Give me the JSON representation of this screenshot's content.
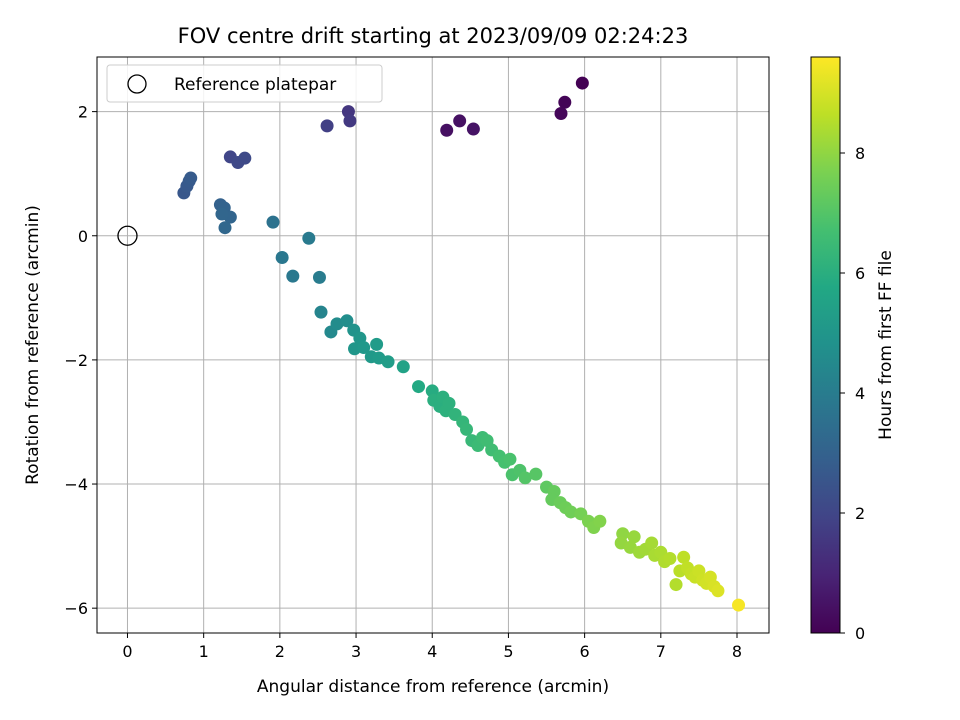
{
  "chart_data": {
    "type": "scatter",
    "title": "FOV centre drift starting at 2023/09/09 02:24:23",
    "xlabel": "Angular distance from reference (arcmin)",
    "ylabel": "Rotation from reference (arcmin)",
    "xlim": [
      -0.4,
      8.42
    ],
    "ylim": [
      -6.4,
      2.88
    ],
    "xticks": [
      "0",
      "1",
      "2",
      "3",
      "4",
      "5",
      "6",
      "7",
      "8"
    ],
    "yticks": [
      "2",
      "0",
      "−2",
      "−4",
      "−6"
    ],
    "grid": true,
    "legend": {
      "label": "Reference platepar",
      "placement": "top-left"
    },
    "reference_point": {
      "x": 0,
      "y": 0
    },
    "colorbar": {
      "label": "Hours from first FF file",
      "range": [
        0,
        9.6
      ],
      "ticks": [
        "0",
        "2",
        "4",
        "6",
        "8"
      ],
      "colormap": "viridis",
      "colors": [
        "#440154",
        "#482475",
        "#414487",
        "#355f8d",
        "#2a788e",
        "#21918c",
        "#22a884",
        "#44bf70",
        "#7ad151",
        "#bddf26",
        "#fde725"
      ]
    },
    "points": [
      [
        5.97,
        2.46,
        0.0
      ],
      [
        5.74,
        2.15,
        0.1
      ],
      [
        5.69,
        1.97,
        0.15
      ],
      [
        4.19,
        1.7,
        0.4
      ],
      [
        4.36,
        1.85,
        0.45
      ],
      [
        4.54,
        1.72,
        0.5
      ],
      [
        2.9,
        2.0,
        1.5
      ],
      [
        2.92,
        1.85,
        1.6
      ],
      [
        2.62,
        1.77,
        1.8
      ],
      [
        1.35,
        1.27,
        2.0
      ],
      [
        1.45,
        1.18,
        2.1
      ],
      [
        1.54,
        1.25,
        2.15
      ],
      [
        0.74,
        0.69,
        2.6
      ],
      [
        0.78,
        0.8,
        2.65
      ],
      [
        0.81,
        0.88,
        2.7
      ],
      [
        0.83,
        0.93,
        2.75
      ],
      [
        1.22,
        0.5,
        3.0
      ],
      [
        1.27,
        0.45,
        3.05
      ],
      [
        1.35,
        0.3,
        3.1
      ],
      [
        1.24,
        0.35,
        3.15
      ],
      [
        1.28,
        0.13,
        3.2
      ],
      [
        1.91,
        0.22,
        3.6
      ],
      [
        2.03,
        -0.35,
        3.8
      ],
      [
        2.17,
        -0.65,
        3.85
      ],
      [
        2.38,
        -0.04,
        3.9
      ],
      [
        2.52,
        -0.67,
        4.0
      ],
      [
        2.54,
        -1.23,
        4.3
      ],
      [
        2.67,
        -1.55,
        4.5
      ],
      [
        2.75,
        -1.42,
        4.6
      ],
      [
        2.88,
        -1.37,
        4.7
      ],
      [
        2.97,
        -1.52,
        4.9
      ],
      [
        3.05,
        -1.65,
        5.0
      ],
      [
        2.98,
        -1.82,
        5.0
      ],
      [
        3.1,
        -1.8,
        5.1
      ],
      [
        3.2,
        -1.95,
        5.15
      ],
      [
        3.27,
        -1.75,
        5.2
      ],
      [
        3.3,
        -1.97,
        5.2
      ],
      [
        3.42,
        -2.03,
        5.3
      ],
      [
        3.62,
        -2.11,
        5.5
      ],
      [
        3.82,
        -2.43,
        5.8
      ],
      [
        4.0,
        -2.5,
        5.9
      ],
      [
        4.02,
        -2.65,
        6.0
      ],
      [
        4.1,
        -2.75,
        6.0
      ],
      [
        4.14,
        -2.6,
        6.05
      ],
      [
        4.18,
        -2.82,
        6.1
      ],
      [
        4.22,
        -2.7,
        6.1
      ],
      [
        4.3,
        -2.88,
        6.2
      ],
      [
        4.4,
        -3.0,
        6.3
      ],
      [
        4.45,
        -3.12,
        6.35
      ],
      [
        4.52,
        -3.3,
        6.4
      ],
      [
        4.6,
        -3.38,
        6.5
      ],
      [
        4.66,
        -3.25,
        6.55
      ],
      [
        4.72,
        -3.3,
        6.6
      ],
      [
        4.78,
        -3.45,
        6.6
      ],
      [
        4.88,
        -3.55,
        6.7
      ],
      [
        4.95,
        -3.65,
        6.75
      ],
      [
        5.02,
        -3.6,
        6.8
      ],
      [
        5.05,
        -3.85,
        6.85
      ],
      [
        5.15,
        -3.78,
        6.9
      ],
      [
        5.22,
        -3.9,
        7.0
      ],
      [
        5.36,
        -3.84,
        7.05
      ],
      [
        5.5,
        -4.05,
        7.2
      ],
      [
        5.6,
        -4.12,
        7.3
      ],
      [
        5.57,
        -4.25,
        7.3
      ],
      [
        5.68,
        -4.3,
        7.4
      ],
      [
        5.75,
        -4.38,
        7.45
      ],
      [
        5.82,
        -4.45,
        7.5
      ],
      [
        5.95,
        -4.48,
        7.6
      ],
      [
        6.05,
        -4.6,
        7.7
      ],
      [
        6.12,
        -4.7,
        7.75
      ],
      [
        6.2,
        -4.6,
        7.8
      ],
      [
        6.5,
        -4.8,
        8.0
      ],
      [
        6.48,
        -4.95,
        8.05
      ],
      [
        6.6,
        -5.02,
        8.1
      ],
      [
        6.65,
        -4.85,
        8.1
      ],
      [
        6.72,
        -5.1,
        8.2
      ],
      [
        6.8,
        -5.05,
        8.25
      ],
      [
        6.88,
        -4.95,
        8.3
      ],
      [
        6.92,
        -5.15,
        8.35
      ],
      [
        7.0,
        -5.1,
        8.4
      ],
      [
        7.05,
        -5.25,
        8.45
      ],
      [
        7.12,
        -5.2,
        8.5
      ],
      [
        7.2,
        -5.62,
        8.5
      ],
      [
        7.25,
        -5.4,
        8.6
      ],
      [
        7.3,
        -5.18,
        8.65
      ],
      [
        7.35,
        -5.35,
        8.7
      ],
      [
        7.4,
        -5.45,
        8.75
      ],
      [
        7.45,
        -5.5,
        8.8
      ],
      [
        7.5,
        -5.4,
        8.85
      ],
      [
        7.55,
        -5.55,
        8.9
      ],
      [
        7.6,
        -5.6,
        8.95
      ],
      [
        7.65,
        -5.5,
        9.0
      ],
      [
        7.7,
        -5.65,
        9.05
      ],
      [
        7.75,
        -5.72,
        9.1
      ],
      [
        8.02,
        -5.95,
        9.5
      ]
    ]
  }
}
